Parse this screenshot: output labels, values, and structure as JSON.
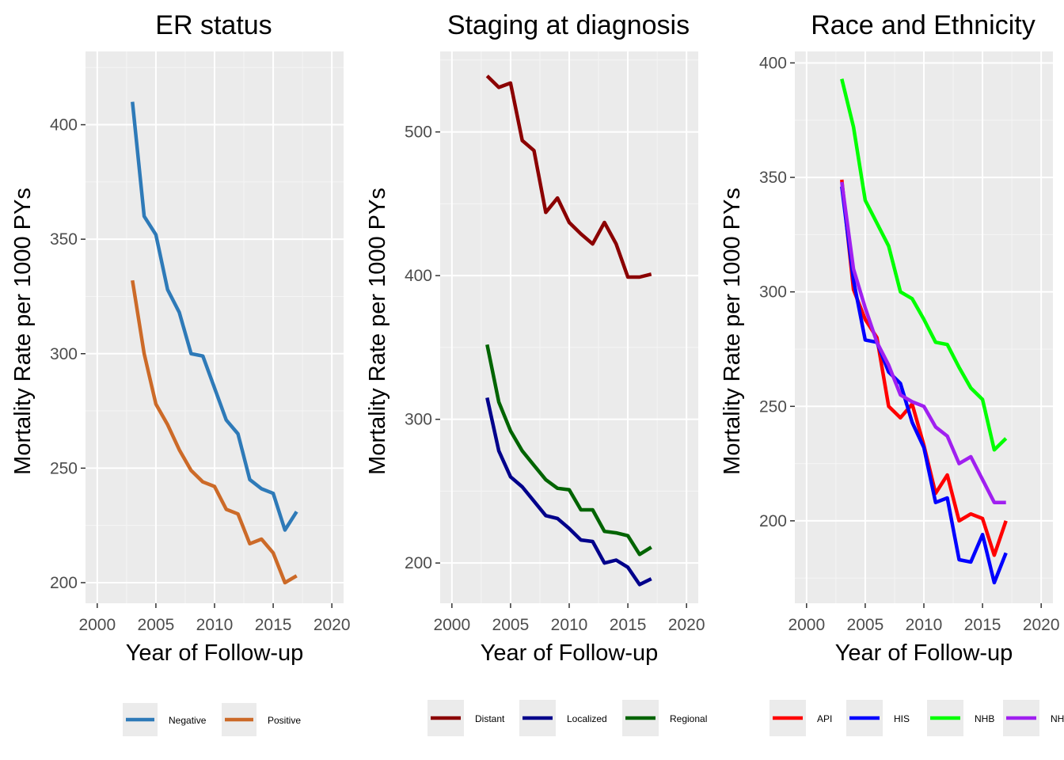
{
  "chart_data": [
    {
      "type": "line",
      "title": "ER status",
      "xlabel": "Year of Follow-up",
      "ylabel": "Mortality Rate per 1000 PYs",
      "xlim": [
        1999,
        2021
      ],
      "ylim": [
        191,
        432
      ],
      "xticks": [
        2000,
        2005,
        2010,
        2015,
        2020
      ],
      "yticks": [
        200,
        250,
        300,
        350,
        400
      ],
      "grid": true,
      "legend_position": "bottom",
      "x": [
        2003,
        2004,
        2005,
        2006,
        2007,
        2008,
        2009,
        2010,
        2011,
        2012,
        2013,
        2014,
        2015,
        2016,
        2017
      ],
      "series": [
        {
          "name": "Negative",
          "color": "#2e7ab8",
          "values": [
            410,
            360,
            352,
            328,
            318,
            300,
            299,
            285,
            271,
            265,
            245,
            241,
            239,
            223,
            231
          ]
        },
        {
          "name": "Positive",
          "color": "#cc6a28",
          "values": [
            332,
            300,
            278,
            269,
            258,
            249,
            244,
            242,
            232,
            230,
            217,
            219,
            213,
            200,
            203
          ]
        }
      ]
    },
    {
      "type": "line",
      "title": "Staging at diagnosis",
      "xlabel": "Year of Follow-up",
      "ylabel": "Mortality Rate per 1000 PYs",
      "xlim": [
        1999,
        2021
      ],
      "ylim": [
        172,
        556
      ],
      "xticks": [
        2000,
        2005,
        2010,
        2015,
        2020
      ],
      "yticks": [
        200,
        300,
        400,
        500
      ],
      "grid": true,
      "legend_position": "bottom",
      "x": [
        2003,
        2004,
        2005,
        2006,
        2007,
        2008,
        2009,
        2010,
        2011,
        2012,
        2013,
        2014,
        2015,
        2016,
        2017
      ],
      "series": [
        {
          "name": "Distant",
          "color": "#8b0000",
          "values": [
            539,
            531,
            534,
            494,
            487,
            444,
            454,
            437,
            429,
            422,
            437,
            422,
            399,
            399,
            401
          ]
        },
        {
          "name": "Localized",
          "color": "#00008b",
          "values": [
            315,
            278,
            260,
            253,
            243,
            233,
            231,
            224,
            216,
            215,
            200,
            202,
            197,
            185,
            189
          ]
        },
        {
          "name": "Regional",
          "color": "#006400",
          "values": [
            352,
            312,
            292,
            278,
            268,
            258,
            252,
            251,
            237,
            237,
            222,
            221,
            219,
            206,
            211
          ]
        }
      ]
    },
    {
      "type": "line",
      "title": "Race and Ethnicity",
      "xlabel": "Year of Follow-up",
      "ylabel": "Mortality Rate per 1000 PYs",
      "xlim": [
        1999,
        2021
      ],
      "ylim": [
        164,
        405
      ],
      "xticks": [
        2000,
        2005,
        2010,
        2015,
        2020
      ],
      "yticks": [
        200,
        250,
        300,
        350,
        400
      ],
      "grid": true,
      "legend_position": "bottom",
      "x": [
        2003,
        2004,
        2005,
        2006,
        2007,
        2008,
        2009,
        2010,
        2011,
        2012,
        2013,
        2014,
        2015,
        2016,
        2017
      ],
      "series": [
        {
          "name": "API",
          "color": "#ff0000",
          "values": [
            349,
            301,
            288,
            280,
            250,
            245,
            251,
            233,
            212,
            220,
            200,
            203,
            201,
            185,
            200
          ]
        },
        {
          "name": "HIS",
          "color": "#0000ff",
          "values": [
            346,
            305,
            279,
            278,
            265,
            260,
            243,
            232,
            208,
            210,
            183,
            182,
            194,
            173,
            186
          ]
        },
        {
          "name": "NHB",
          "color": "#00ff00",
          "values": [
            393,
            372,
            340,
            330,
            320,
            300,
            297,
            288,
            278,
            277,
            267,
            258,
            253,
            231,
            236
          ]
        },
        {
          "name": "NH",
          "color": "#a020f0",
          "values": [
            348,
            310,
            293,
            278,
            268,
            255,
            252,
            250,
            241,
            237,
            225,
            228,
            218,
            208,
            208
          ]
        }
      ]
    }
  ]
}
